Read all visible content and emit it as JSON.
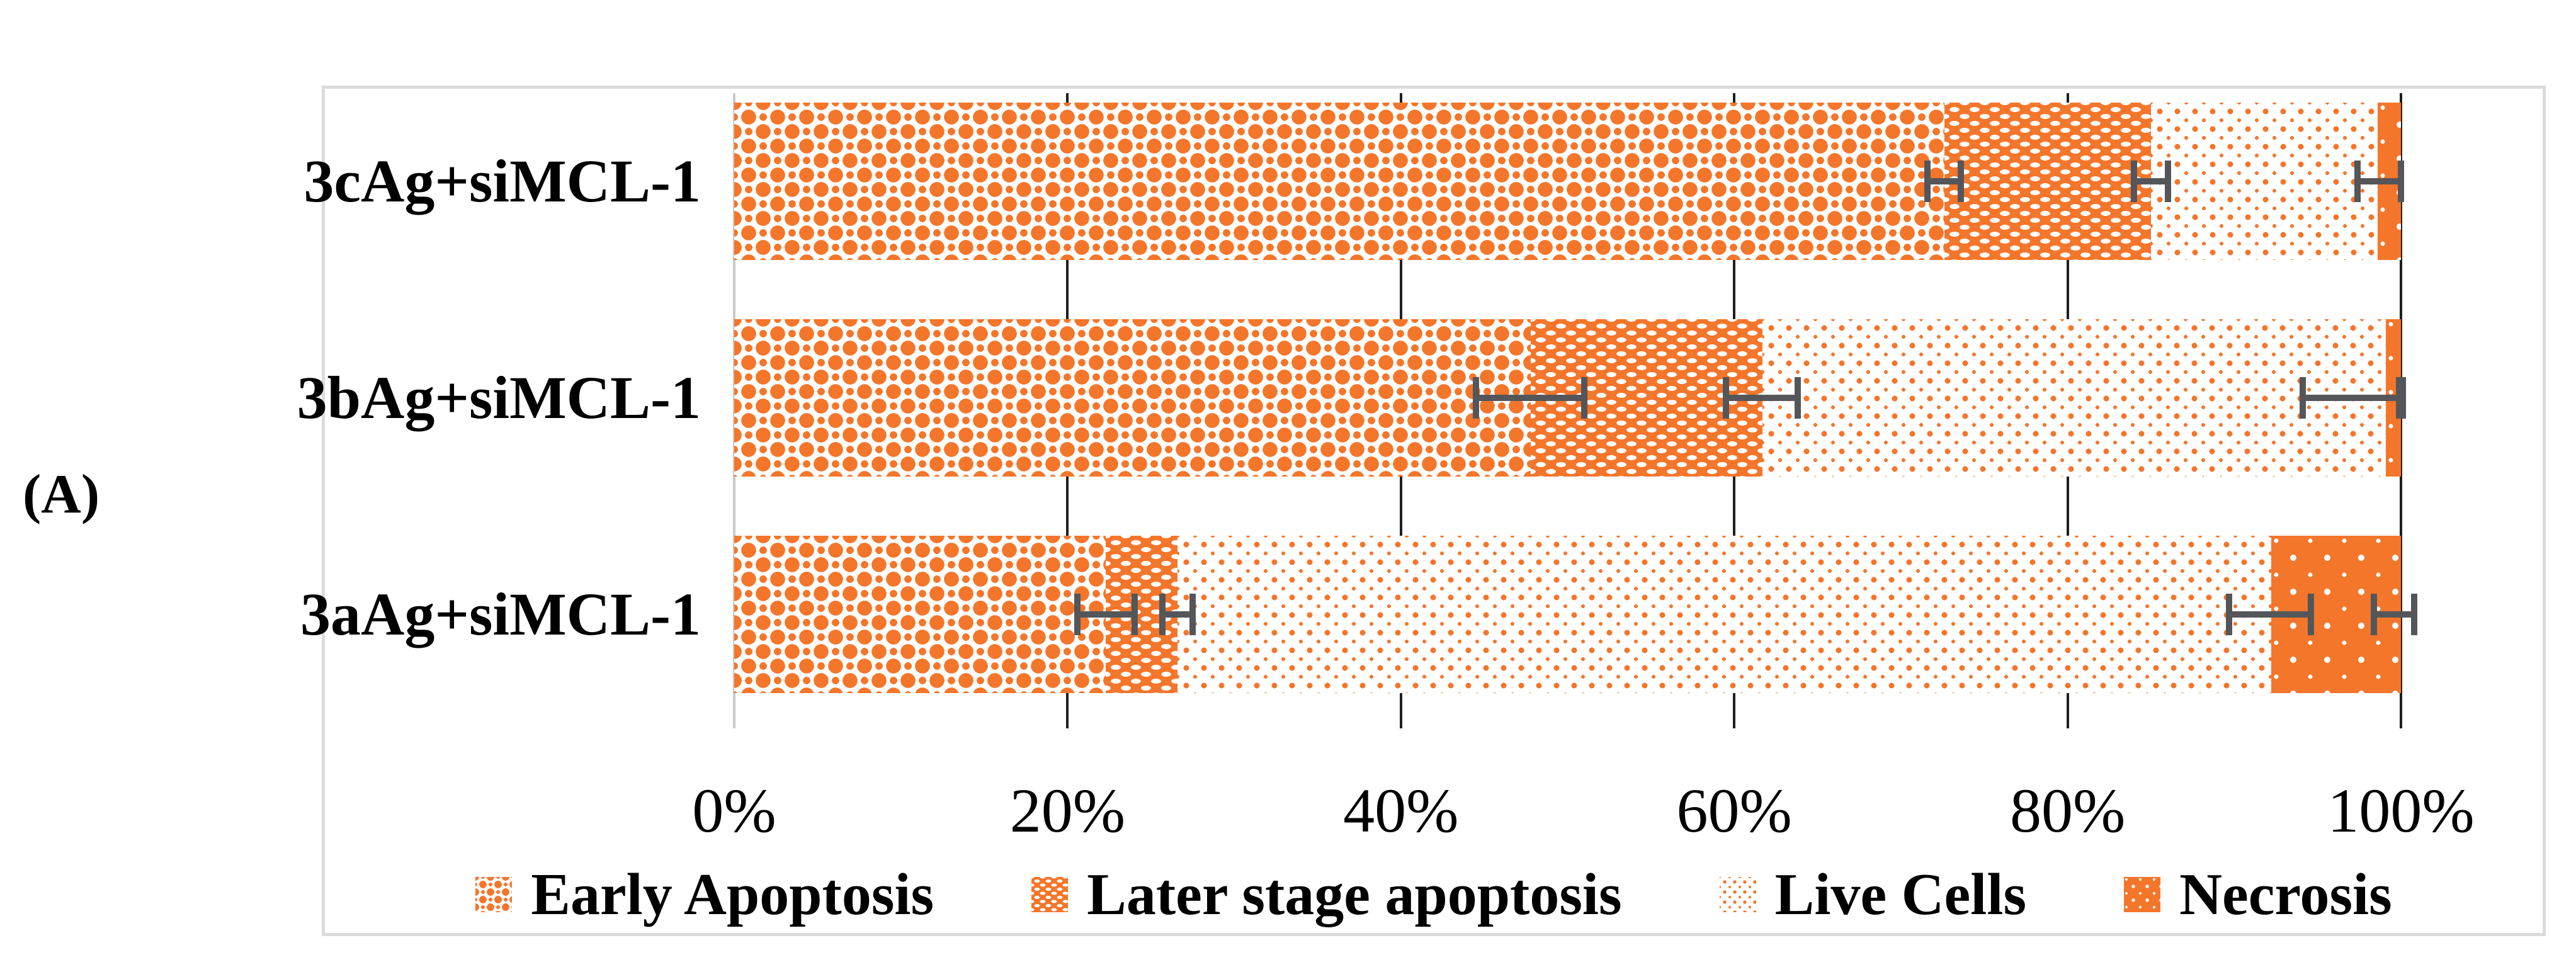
{
  "panel_label": "(A)",
  "chart_data": {
    "type": "bar",
    "subtype": "horizontal_stacked_100pct",
    "title": "",
    "xlabel": "",
    "ylabel": "",
    "xlim": [
      0,
      100
    ],
    "grid": "vertical_major",
    "legend_position": "bottom",
    "categories": [
      "3cAg+siMCL-1",
      "3bAg+siMCL-1",
      "3aAg+siMCL-1"
    ],
    "series": [
      {
        "name": "Early Apoptosis",
        "key": "early",
        "pattern": "orange woven large dots on white",
        "values": [
          72.6,
          47.8,
          22.3
        ]
      },
      {
        "name": "Later stage apoptosis",
        "key": "later",
        "pattern": "orange with rows of white dashes",
        "values": [
          12.4,
          13.9,
          4.3
        ]
      },
      {
        "name": "Live Cells",
        "key": "live",
        "pattern": "white with fine orange dots",
        "values": [
          13.6,
          37.4,
          65.6
        ]
      },
      {
        "name": "Necrosis",
        "key": "necrosis",
        "pattern": "solid orange with white dots",
        "values": [
          1.4,
          0.9,
          7.8
        ]
      }
    ],
    "x_ticks": [
      {
        "label": "0%",
        "value": 0
      },
      {
        "label": "20%",
        "value": 20
      },
      {
        "label": "40%",
        "value": 40
      },
      {
        "label": "60%",
        "value": 60
      },
      {
        "label": "80%",
        "value": 80
      },
      {
        "label": "100%",
        "value": 100
      }
    ],
    "error_bars": [
      [
        {
          "at": 72.6,
          "lo": 71.4,
          "hi": 73.8
        },
        {
          "at": 85.0,
          "lo": 83.8,
          "hi": 86.2
        },
        {
          "at": 98.6,
          "lo": 97.2,
          "hi": 100.2
        }
      ],
      [
        {
          "at": 47.8,
          "lo": 44.3,
          "hi": 51.2
        },
        {
          "at": 61.7,
          "lo": 59.3,
          "hi": 64.0
        },
        {
          "at": 99.1,
          "lo": 93.9,
          "hi": 100.3
        },
        {
          "at": 100.0,
          "lo": 99.7,
          "hi": 100.3
        }
      ],
      [
        {
          "at": 22.3,
          "lo": 20.4,
          "hi": 24.2
        },
        {
          "at": 26.6,
          "lo": 25.5,
          "hi": 27.7
        },
        {
          "at": 92.2,
          "lo": 89.5,
          "hi": 94.8
        },
        {
          "at": 100.0,
          "lo": 98.2,
          "hi": 101.0
        }
      ]
    ],
    "colors": {
      "accent_orange": "#F4762B",
      "gridline": "#1F1F1F",
      "zero_axis_line": "#C9C9C9",
      "error_bar": "#54565A",
      "chart_border": "#DBDBDB",
      "text": "#000000"
    }
  }
}
